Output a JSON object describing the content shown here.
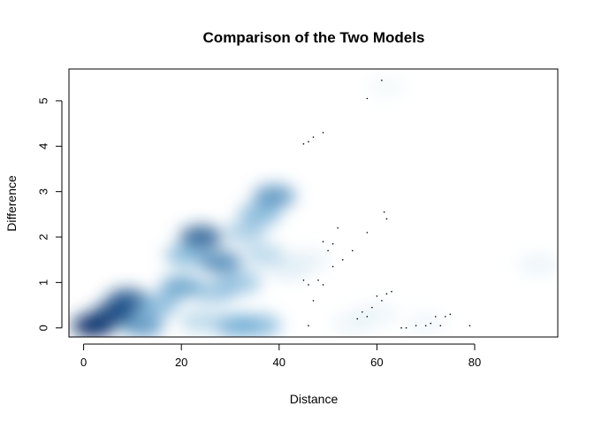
{
  "chart_data": {
    "type": "heatmap",
    "subtype": "smoothScatter density",
    "title": "Comparison of the Two Models",
    "xlabel": "Distance",
    "ylabel": "Difference",
    "xlim": [
      -3,
      97
    ],
    "ylim": [
      -0.2,
      5.7
    ],
    "x_ticks": [
      0,
      20,
      40,
      60,
      80
    ],
    "y_ticks": [
      0,
      1,
      2,
      3,
      4,
      5
    ],
    "color_low": "#ffffff",
    "color_high": "#08306b",
    "density_regions": [
      {
        "x": 2,
        "y": 0.05,
        "intensity": 1.0
      },
      {
        "x": 6,
        "y": 0.3,
        "intensity": 0.9
      },
      {
        "x": 9,
        "y": 0.6,
        "intensity": 0.85
      },
      {
        "x": 12,
        "y": 0.05,
        "intensity": 0.6
      },
      {
        "x": 15,
        "y": 0.5,
        "intensity": 0.45
      },
      {
        "x": 20,
        "y": 0.9,
        "intensity": 0.55
      },
      {
        "x": 24,
        "y": 2.0,
        "intensity": 0.8
      },
      {
        "x": 21,
        "y": 1.6,
        "intensity": 0.45
      },
      {
        "x": 28,
        "y": 1.45,
        "intensity": 0.65
      },
      {
        "x": 27,
        "y": 0.8,
        "intensity": 0.4
      },
      {
        "x": 32,
        "y": 1.0,
        "intensity": 0.4
      },
      {
        "x": 33,
        "y": 2.1,
        "intensity": 0.35
      },
      {
        "x": 36,
        "y": 2.5,
        "intensity": 0.45
      },
      {
        "x": 39,
        "y": 2.9,
        "intensity": 0.6
      },
      {
        "x": 37,
        "y": 1.6,
        "intensity": 0.3
      },
      {
        "x": 31,
        "y": 0.05,
        "intensity": 0.5
      },
      {
        "x": 36,
        "y": 0.05,
        "intensity": 0.45
      },
      {
        "x": 24,
        "y": 0.15,
        "intensity": 0.3
      },
      {
        "x": 42,
        "y": 1.3,
        "intensity": 0.15
      },
      {
        "x": 46,
        "y": 1.5,
        "intensity": 0.12
      },
      {
        "x": 55,
        "y": 0.1,
        "intensity": 0.1
      },
      {
        "x": 60,
        "y": 0.3,
        "intensity": 0.1
      },
      {
        "x": 70,
        "y": 0.1,
        "intensity": 0.08
      },
      {
        "x": 93,
        "y": 1.4,
        "intensity": 0.1
      },
      {
        "x": 62,
        "y": 5.3,
        "intensity": 0.06
      }
    ],
    "outlier_points": [
      {
        "x": 61,
        "y": 5.45
      },
      {
        "x": 58,
        "y": 5.05
      },
      {
        "x": 49,
        "y": 4.3
      },
      {
        "x": 45,
        "y": 4.05
      },
      {
        "x": 46,
        "y": 4.1
      },
      {
        "x": 47,
        "y": 4.2
      },
      {
        "x": 61.5,
        "y": 2.55
      },
      {
        "x": 62,
        "y": 2.4
      },
      {
        "x": 51,
        "y": 1.85
      },
      {
        "x": 49,
        "y": 1.9
      },
      {
        "x": 52,
        "y": 2.2
      },
      {
        "x": 50,
        "y": 1.7
      },
      {
        "x": 53,
        "y": 1.5
      },
      {
        "x": 58,
        "y": 2.1
      },
      {
        "x": 55,
        "y": 1.7
      },
      {
        "x": 45,
        "y": 1.05
      },
      {
        "x": 46,
        "y": 0.95
      },
      {
        "x": 48,
        "y": 1.05
      },
      {
        "x": 49,
        "y": 0.95
      },
      {
        "x": 51,
        "y": 1.35
      },
      {
        "x": 47,
        "y": 0.6
      },
      {
        "x": 60,
        "y": 0.7
      },
      {
        "x": 61,
        "y": 0.6
      },
      {
        "x": 62,
        "y": 0.75
      },
      {
        "x": 63,
        "y": 0.8
      },
      {
        "x": 57,
        "y": 0.35
      },
      {
        "x": 58,
        "y": 0.25
      },
      {
        "x": 59,
        "y": 0.45
      },
      {
        "x": 56,
        "y": 0.2
      },
      {
        "x": 46,
        "y": 0.05
      },
      {
        "x": 65,
        "y": 0.0
      },
      {
        "x": 66,
        "y": 0.0
      },
      {
        "x": 68,
        "y": 0.05
      },
      {
        "x": 70,
        "y": 0.05
      },
      {
        "x": 72,
        "y": 0.25
      },
      {
        "x": 74,
        "y": 0.25
      },
      {
        "x": 75,
        "y": 0.3
      },
      {
        "x": 71,
        "y": 0.1
      },
      {
        "x": 73,
        "y": 0.05
      },
      {
        "x": 79,
        "y": 0.05
      }
    ]
  }
}
